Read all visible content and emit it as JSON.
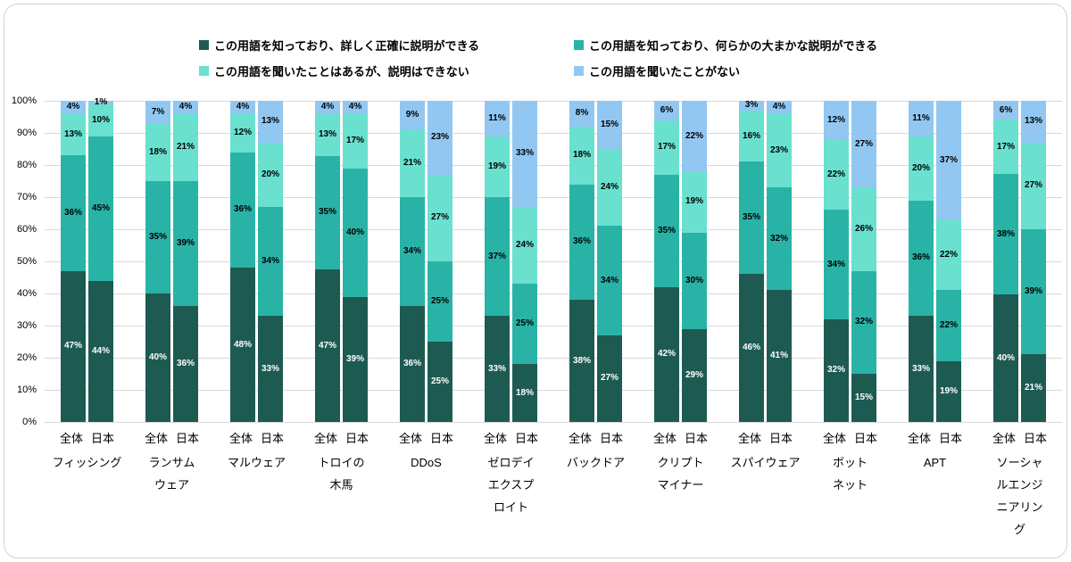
{
  "chart_data": {
    "type": "bar",
    "subtype": "stacked-100-percent-column",
    "unit": "%",
    "grid": true,
    "legend_position": "top",
    "y_axis": {
      "min": 0,
      "max": 100,
      "step": 10
    },
    "y_ticks": [
      "0%",
      "10%",
      "20%",
      "30%",
      "40%",
      "50%",
      "60%",
      "70%",
      "80%",
      "90%",
      "100%"
    ],
    "gridline_color": "#d9d9d9",
    "series": [
      {
        "name": "この用語を知っており、詳しく正確に説明ができる",
        "color": "#1d5b52",
        "label_color": "#ffffff"
      },
      {
        "name": "この用語を知っており、何らかの大まかな説明ができる",
        "color": "#29b3a7",
        "label_color": "#000000"
      },
      {
        "name": "この用語を聞いたことはあるが、説明はできない",
        "color": "#6ae0cf",
        "label_color": "#000000"
      },
      {
        "name": "この用語を聞いたことがない",
        "color": "#92c7f1",
        "label_color": "#000000"
      }
    ],
    "bar_labels": [
      "全体",
      "日本"
    ],
    "groups": [
      {
        "name": "フィッシング",
        "name_lines": [
          "フィッシング"
        ],
        "bars": [
          [
            47,
            36,
            13,
            4
          ],
          [
            44,
            45,
            10,
            1
          ]
        ]
      },
      {
        "name": "ランサムウェア",
        "name_lines": [
          "ランサム",
          "ウェア"
        ],
        "bars": [
          [
            40,
            35,
            18,
            7
          ],
          [
            36,
            39,
            21,
            4
          ]
        ]
      },
      {
        "name": "マルウェア",
        "name_lines": [
          "マルウェア"
        ],
        "bars": [
          [
            48,
            36,
            12,
            4
          ],
          [
            33,
            34,
            20,
            13
          ]
        ]
      },
      {
        "name": "トロイの木馬",
        "name_lines": [
          "トロイの",
          "木馬"
        ],
        "bars": [
          [
            47,
            35,
            13,
            4
          ],
          [
            39,
            40,
            17,
            4
          ]
        ]
      },
      {
        "name": "DDoS",
        "name_lines": [
          "DDoS"
        ],
        "bars": [
          [
            36,
            34,
            21,
            9
          ],
          [
            25,
            25,
            27,
            23
          ]
        ]
      },
      {
        "name": "ゼロデイエクスプロイト",
        "name_lines": [
          "ゼロデイ",
          "エクスプ",
          "ロイト"
        ],
        "bars": [
          [
            33,
            37,
            19,
            11
          ],
          [
            18,
            25,
            24,
            33
          ]
        ]
      },
      {
        "name": "バックドア",
        "name_lines": [
          "バックドア"
        ],
        "bars": [
          [
            38,
            36,
            18,
            8
          ],
          [
            27,
            34,
            24,
            15
          ]
        ]
      },
      {
        "name": "クリプトマイナー",
        "name_lines": [
          "クリプト",
          "マイナー"
        ],
        "bars": [
          [
            42,
            35,
            17,
            6
          ],
          [
            29,
            30,
            19,
            22
          ]
        ]
      },
      {
        "name": "スパイウェア",
        "name_lines": [
          "スパイウェア"
        ],
        "bars": [
          [
            46,
            35,
            16,
            3
          ],
          [
            41,
            32,
            23,
            4
          ]
        ]
      },
      {
        "name": "ボットネット",
        "name_lines": [
          "ボット",
          "ネット"
        ],
        "bars": [
          [
            32,
            34,
            22,
            12
          ],
          [
            15,
            32,
            26,
            27
          ]
        ]
      },
      {
        "name": "APT",
        "name_lines": [
          "APT"
        ],
        "bars": [
          [
            33,
            36,
            20,
            11
          ],
          [
            19,
            22,
            22,
            37
          ]
        ]
      },
      {
        "name": "ソーシャルエンジニアリング",
        "name_lines": [
          "ソーシャ",
          "ルエンジ",
          "ニアリン",
          "グ"
        ],
        "bars": [
          [
            40,
            38,
            17,
            6
          ],
          [
            21,
            39,
            27,
            13
          ]
        ]
      }
    ]
  }
}
